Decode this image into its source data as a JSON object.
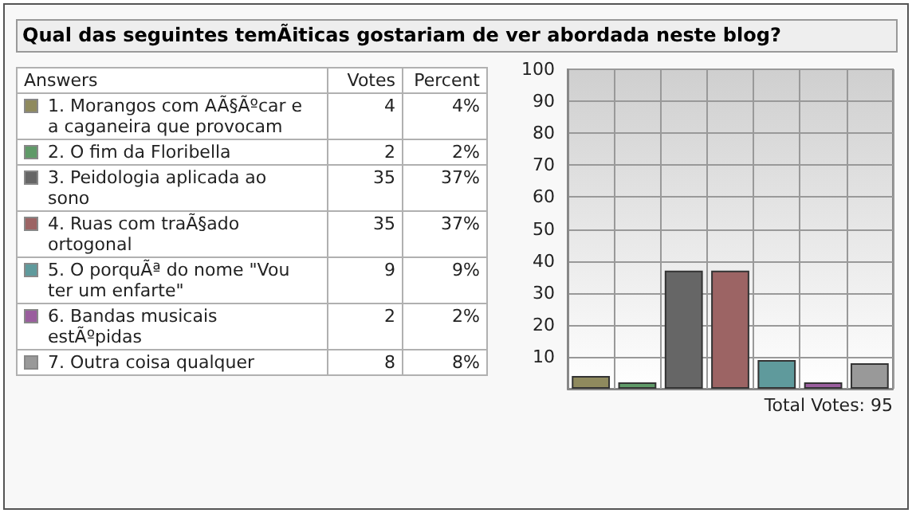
{
  "chart_data": [
    {
      "type": "other",
      "title": "Qual das seguintes temÃiticas gostariam de ver abordada neste blog?",
      "xlabel": "Answers",
      "categories": [
        "1. Morangos com AÃ§Ãºcar e a caganeira que provocam",
        "2. O fim da Floribella",
        "3. Peidologia aplicada ao sono",
        "4. Ruas com traÃ§ado ortogonal",
        "5. O porquÃª do nome \"Vou ter um enfarte\"",
        "6. Bandas musicais estÃºpidas",
        "7. Outra coisa qualquer"
      ],
      "colors": [
        "#8f8a5e",
        "#5f9a68",
        "#666666",
        "#9c6464",
        "#5f9a9c",
        "#9a5e9e",
        "#999999"
      ],
      "series": [
        {
          "name": "Votes",
          "values": [
            4,
            2,
            35,
            35,
            9,
            2,
            8
          ]
        },
        {
          "name": "Percent",
          "values": [
            4,
            2,
            37,
            37,
            9,
            2,
            8
          ],
          "value_labels": [
            "4%",
            "2%",
            "37%",
            "37%",
            "9%",
            "2%",
            "8%"
          ]
        }
      ],
      "data_labels": true
    },
    {
      "type": "bar",
      "categories": [
        null,
        null,
        null,
        null,
        null,
        null,
        null
      ],
      "values": [
        4,
        2,
        37,
        37,
        9,
        2,
        8
      ],
      "colors": [
        "#8f8a5e",
        "#5f9a68",
        "#666666",
        "#9c6464",
        "#5f9a9c",
        "#9a5e9e",
        "#999999"
      ],
      "ylim": [
        0,
        100
      ],
      "yticks": [
        10,
        20,
        30,
        40,
        50,
        60,
        70,
        80,
        90,
        100
      ],
      "grid": true,
      "annotations": [
        "Total Votes: 95"
      ]
    }
  ]
}
